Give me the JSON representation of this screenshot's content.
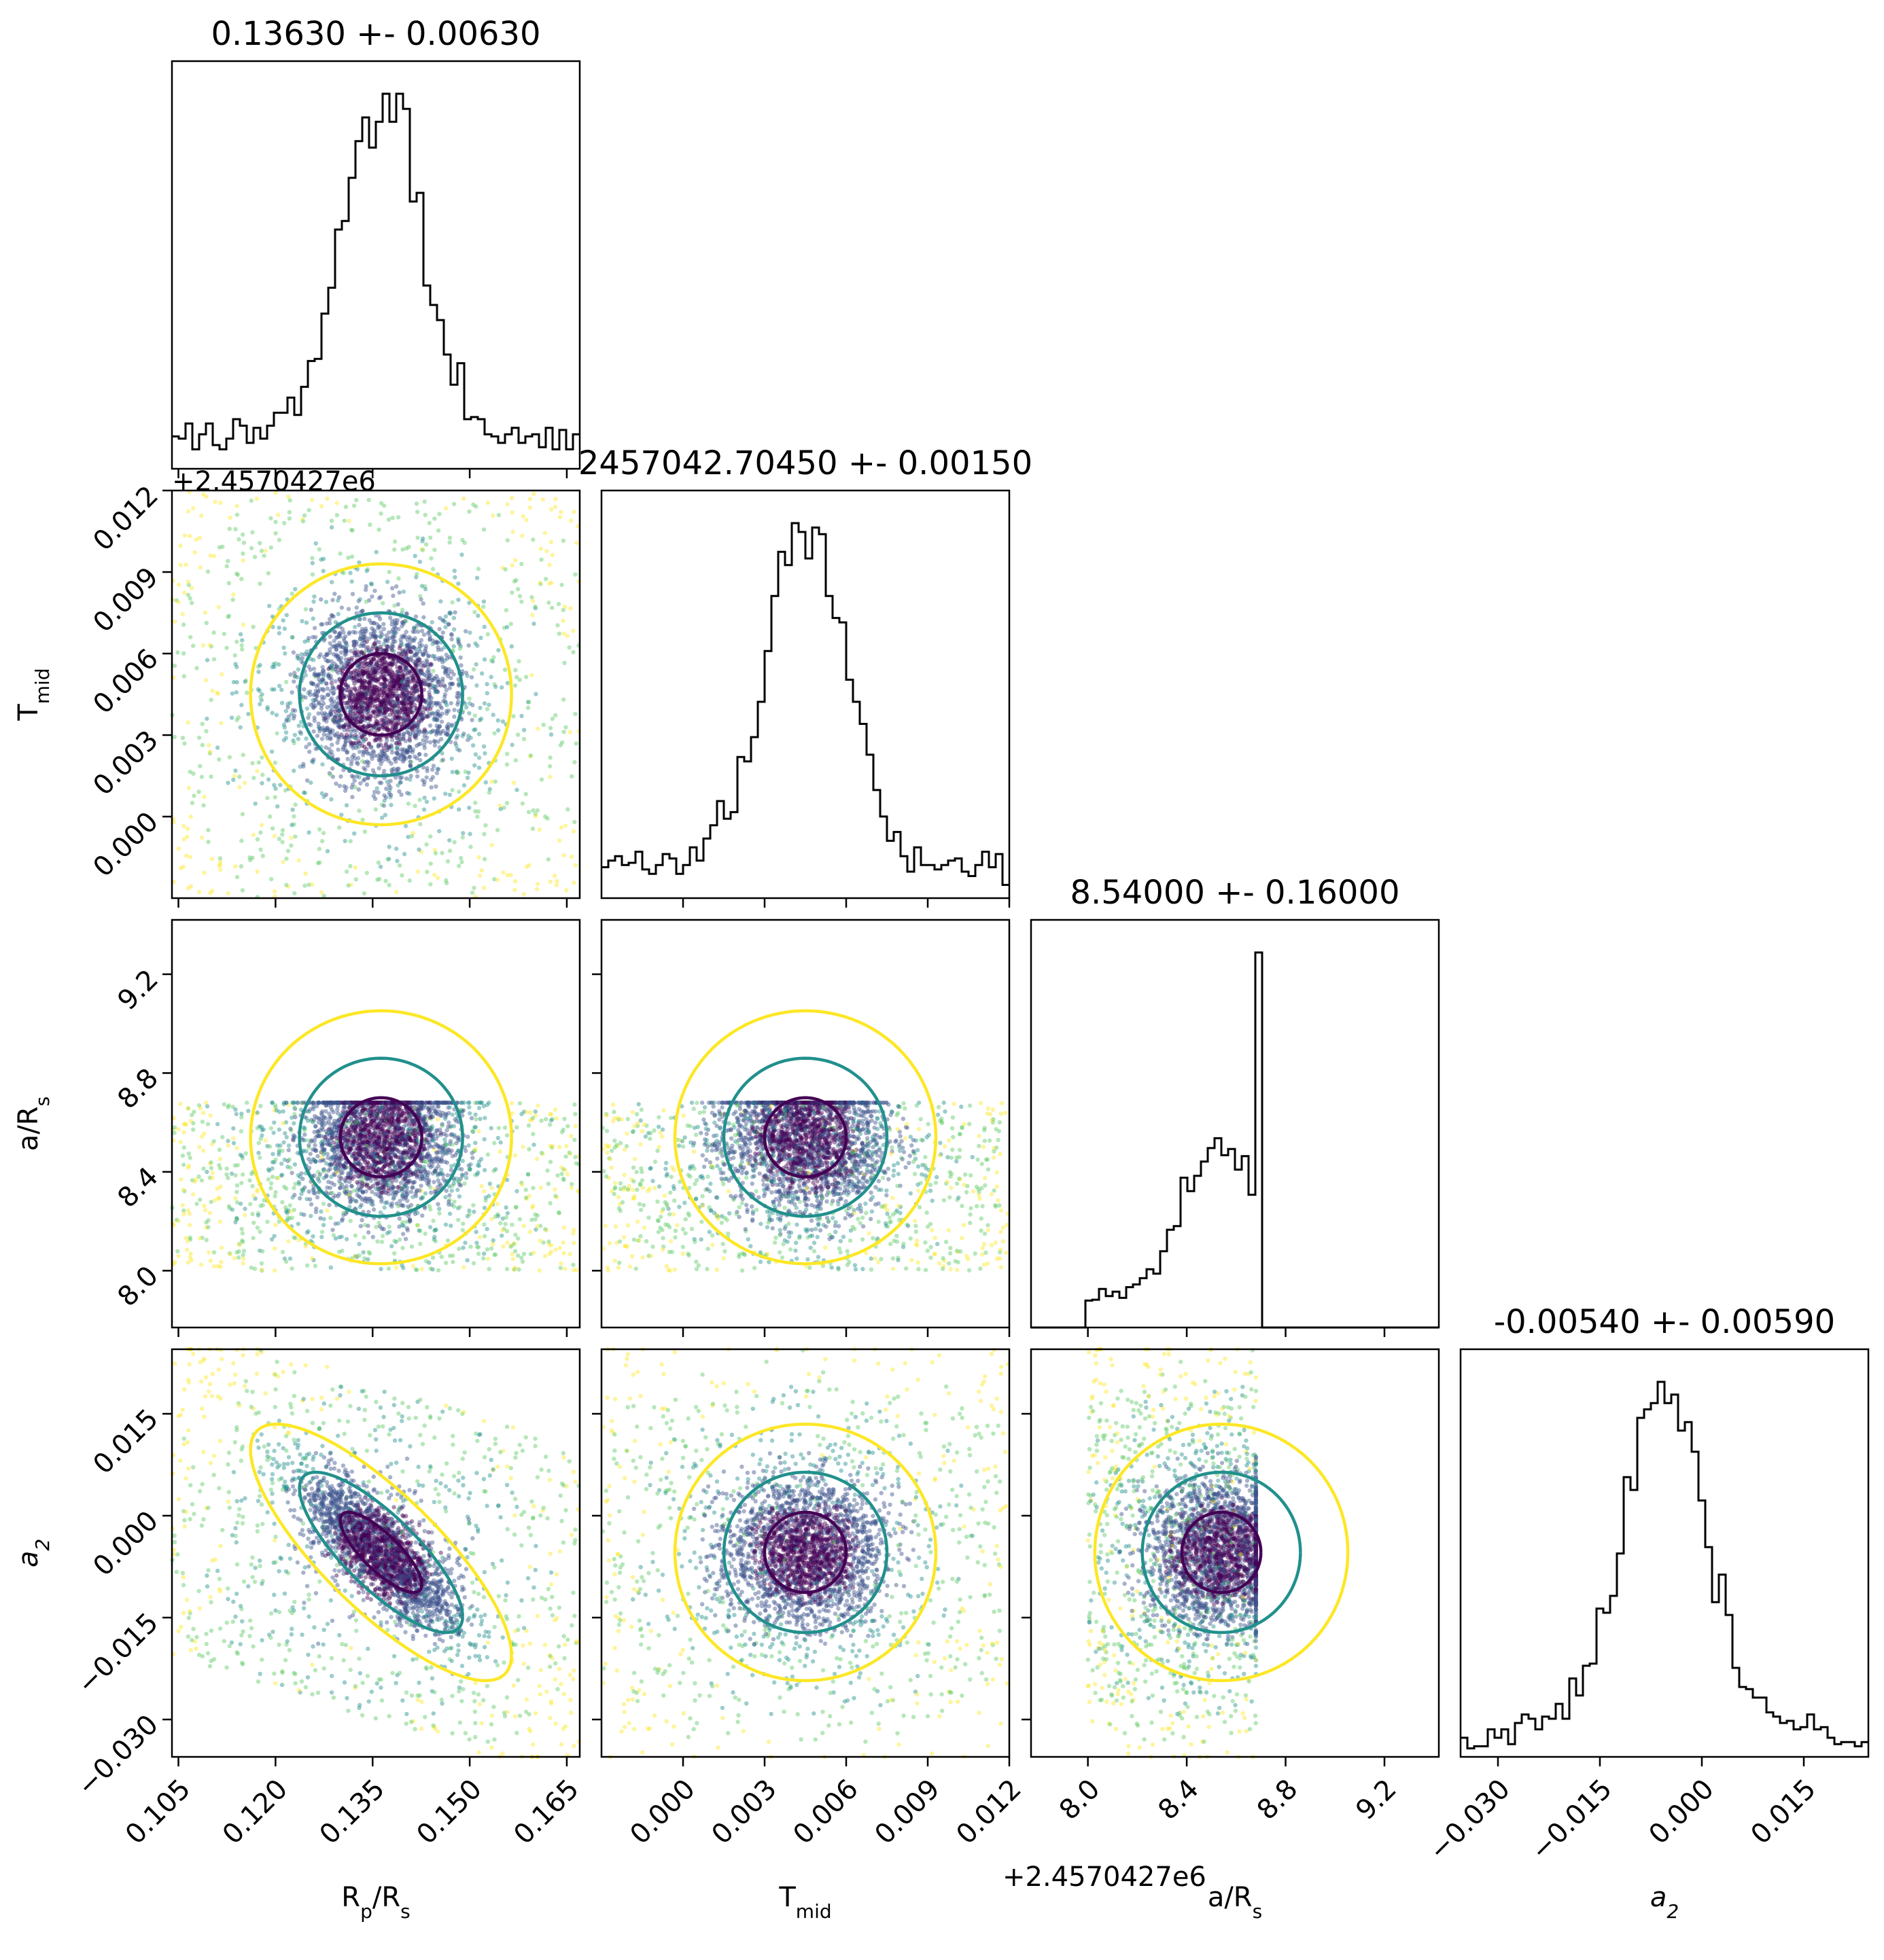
{
  "chart_data": {
    "type": "scatter",
    "subtype": "corner-plot",
    "parameters": [
      {
        "key": "rp",
        "label_main": "R",
        "label_sub": "p",
        "label_tail": "/R",
        "label_tail_sub": "s",
        "title": "0.13630 +- 0.00630",
        "median": 0.1363,
        "sigma": 0.0063,
        "range": [
          0.104,
          0.167
        ],
        "ticks": [
          0.105,
          0.12,
          0.135,
          0.15,
          0.165
        ],
        "tick_labels": [
          "0.105",
          "0.120",
          "0.135",
          "0.150",
          "0.165"
        ],
        "offset": ""
      },
      {
        "key": "tmid",
        "label_main": "T",
        "label_sub": "mid",
        "label_tail": "",
        "label_tail_sub": "",
        "title": "2457042.70450 +- 0.00150",
        "median": 0.0045,
        "sigma": 0.0015,
        "range": [
          -0.003,
          0.012
        ],
        "ticks": [
          0.0,
          0.003,
          0.006,
          0.009,
          0.012
        ],
        "tick_labels": [
          "0.000",
          "0.003",
          "0.006",
          "0.009",
          "0.012"
        ],
        "offset": "+2.4570427e6"
      },
      {
        "key": "ars",
        "label_main": "a/R",
        "label_sub": "s",
        "label_tail": "",
        "label_tail_sub": "",
        "title": "8.54000 +- 0.16000",
        "median": 8.54,
        "sigma": 0.16,
        "range": [
          7.77,
          9.42
        ],
        "ticks": [
          8.0,
          8.4,
          8.8,
          9.2
        ],
        "tick_labels": [
          "8.0",
          "8.4",
          "8.8",
          "9.2"
        ],
        "offset": ""
      },
      {
        "key": "a2",
        "label_main": "a",
        "label_sub": "2",
        "label_tail": "",
        "label_tail_sub": "",
        "italic": true,
        "title": "-0.00540 +- 0.00590",
        "median": -0.0054,
        "sigma": 0.0059,
        "range": [
          -0.0355,
          0.0245
        ],
        "ticks": [
          -0.03,
          -0.015,
          0.0,
          0.015
        ],
        "tick_labels": [
          "−0.030",
          "−0.015",
          "0.000",
          "0.015"
        ],
        "offset": ""
      }
    ],
    "contour_colors": [
      "#440154",
      "#21908c",
      "#fde725"
    ],
    "point_colormap": [
      "#440154",
      "#3b528b",
      "#21908c",
      "#5dc963",
      "#fde725"
    ],
    "ars_sample_bounds": [
      8.0,
      8.68
    ],
    "grid": false,
    "legend": "none"
  }
}
